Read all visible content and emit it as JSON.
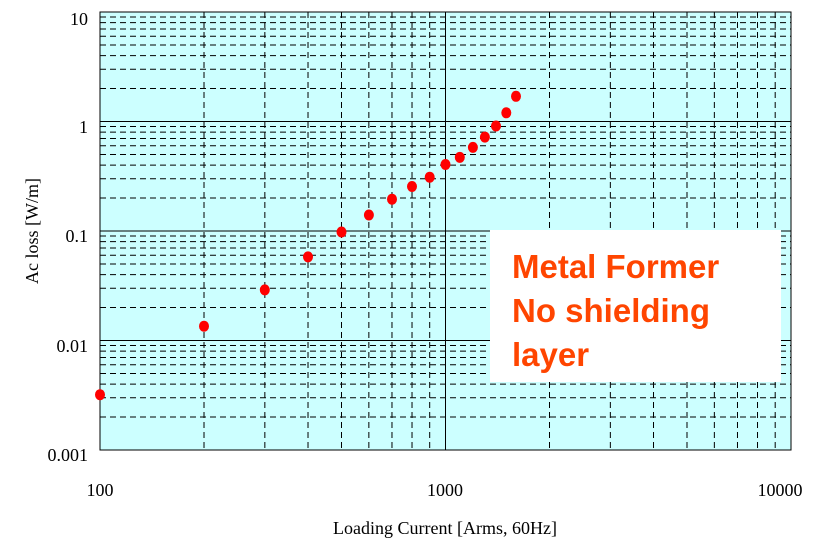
{
  "chart_data": {
    "type": "scatter",
    "title": "",
    "xlabel": "Loading Current [Arms, 60Hz]",
    "ylabel": "Ac loss [W/m]",
    "xscale": "log",
    "yscale": "log",
    "xlim": [
      100,
      10000
    ],
    "ylim": [
      0.001,
      10
    ],
    "x_ticks": [
      "100",
      "1000",
      "10000"
    ],
    "y_ticks": [
      "10",
      "1",
      "0.1",
      "0.01",
      "0.001"
    ],
    "grid": true,
    "plot_background": "#ccffff",
    "marker_color": "#ff0000",
    "annotation": {
      "lines": [
        "Metal Former",
        "No shielding",
        "layer"
      ],
      "color": "#ff4500",
      "background": "#ffffff"
    },
    "series": [
      {
        "x": [
          100,
          200,
          300,
          400,
          500,
          600,
          700,
          800,
          900,
          1000,
          1100,
          1200,
          1300,
          1400,
          1500,
          1600
        ],
        "y": [
          0.0032,
          0.0135,
          0.029,
          0.058,
          0.098,
          0.14,
          0.195,
          0.255,
          0.31,
          0.405,
          0.47,
          0.58,
          0.72,
          0.91,
          1.2,
          1.7
        ]
      }
    ]
  }
}
